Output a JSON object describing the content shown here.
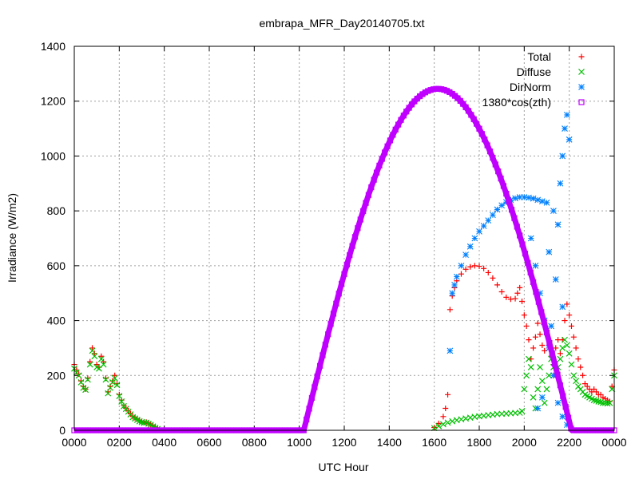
{
  "chart_data": {
    "type": "scatter",
    "title": "embrapa_MFR_Day20140705.txt",
    "xlabel": "UTC Hour",
    "ylabel": "Irradiance (W/m2)",
    "xlim": [
      0,
      24
    ],
    "ylim": [
      0,
      1400
    ],
    "x_ticks": [
      0,
      2,
      4,
      6,
      8,
      10,
      12,
      14,
      16,
      18,
      20,
      22,
      24
    ],
    "x_tick_labels": [
      "0000",
      "0200",
      "0400",
      "0600",
      "0800",
      "1000",
      "1200",
      "1400",
      "1600",
      "1800",
      "2000",
      "2200",
      "0000"
    ],
    "y_ticks": [
      0,
      200,
      400,
      600,
      800,
      1000,
      1200,
      1400
    ],
    "grid": true,
    "legend_position": "top-right",
    "series": [
      {
        "name": "Total",
        "marker": "+",
        "color": "#ff0000",
        "points": [
          [
            0.0,
            240
          ],
          [
            0.1,
            220
          ],
          [
            0.2,
            205
          ],
          [
            0.3,
            180
          ],
          [
            0.4,
            160
          ],
          [
            0.5,
            150
          ],
          [
            0.6,
            190
          ],
          [
            0.7,
            250
          ],
          [
            0.8,
            300
          ],
          [
            0.9,
            280
          ],
          [
            1.0,
            240
          ],
          [
            1.1,
            230
          ],
          [
            1.2,
            270
          ],
          [
            1.3,
            250
          ],
          [
            1.4,
            190
          ],
          [
            1.5,
            140
          ],
          [
            1.6,
            160
          ],
          [
            1.7,
            180
          ],
          [
            1.8,
            200
          ],
          [
            1.9,
            170
          ],
          [
            2.0,
            130
          ],
          [
            2.1,
            110
          ],
          [
            2.2,
            90
          ],
          [
            2.3,
            80
          ],
          [
            2.4,
            70
          ],
          [
            2.5,
            60
          ],
          [
            2.6,
            50
          ],
          [
            2.7,
            45
          ],
          [
            2.8,
            40
          ],
          [
            2.9,
            35
          ],
          [
            3.0,
            30
          ],
          [
            3.1,
            28
          ],
          [
            3.2,
            30
          ],
          [
            3.3,
            25
          ],
          [
            3.4,
            20
          ],
          [
            3.5,
            15
          ],
          [
            3.6,
            10
          ],
          [
            3.7,
            5
          ],
          [
            16.0,
            10
          ],
          [
            16.2,
            25
          ],
          [
            16.4,
            50
          ],
          [
            16.5,
            80
          ],
          [
            16.6,
            130
          ],
          [
            16.7,
            440
          ],
          [
            16.8,
            490
          ],
          [
            16.9,
            520
          ],
          [
            17.0,
            545
          ],
          [
            17.2,
            570
          ],
          [
            17.4,
            587
          ],
          [
            17.6,
            596
          ],
          [
            17.8,
            600
          ],
          [
            18.0,
            598
          ],
          [
            18.2,
            590
          ],
          [
            18.4,
            575
          ],
          [
            18.6,
            555
          ],
          [
            18.8,
            530
          ],
          [
            19.0,
            505
          ],
          [
            19.2,
            485
          ],
          [
            19.4,
            478
          ],
          [
            19.6,
            480
          ],
          [
            19.7,
            500
          ],
          [
            19.8,
            520
          ],
          [
            19.9,
            470
          ],
          [
            20.0,
            420
          ],
          [
            20.1,
            380
          ],
          [
            20.2,
            330
          ],
          [
            20.3,
            260
          ],
          [
            20.4,
            300
          ],
          [
            20.5,
            340
          ],
          [
            20.6,
            390
          ],
          [
            20.7,
            350
          ],
          [
            20.8,
            310
          ],
          [
            20.9,
            290
          ],
          [
            21.0,
            360
          ],
          [
            21.1,
            300
          ],
          [
            21.2,
            270
          ],
          [
            21.3,
            240
          ],
          [
            21.4,
            300
          ],
          [
            21.5,
            330
          ],
          [
            21.6,
            280
          ],
          [
            21.7,
            330
          ],
          [
            21.8,
            400
          ],
          [
            21.9,
            460
          ],
          [
            22.0,
            420
          ],
          [
            22.1,
            380
          ],
          [
            22.2,
            340
          ],
          [
            22.3,
            300
          ],
          [
            22.4,
            260
          ],
          [
            22.5,
            230
          ],
          [
            22.6,
            200
          ],
          [
            22.7,
            170
          ],
          [
            22.8,
            160
          ],
          [
            22.9,
            150
          ],
          [
            23.0,
            140
          ],
          [
            23.1,
            150
          ],
          [
            23.2,
            140
          ],
          [
            23.3,
            130
          ],
          [
            23.4,
            130
          ],
          [
            23.5,
            120
          ],
          [
            23.6,
            115
          ],
          [
            23.7,
            110
          ],
          [
            23.8,
            105
          ],
          [
            23.9,
            160
          ],
          [
            24.0,
            220
          ]
        ]
      },
      {
        "name": "Diffuse",
        "marker": "x",
        "color": "#00c000",
        "points": [
          [
            0.0,
            225
          ],
          [
            0.1,
            210
          ],
          [
            0.2,
            200
          ],
          [
            0.3,
            175
          ],
          [
            0.4,
            155
          ],
          [
            0.5,
            148
          ],
          [
            0.6,
            185
          ],
          [
            0.7,
            240
          ],
          [
            0.8,
            290
          ],
          [
            0.9,
            270
          ],
          [
            1.0,
            230
          ],
          [
            1.1,
            225
          ],
          [
            1.2,
            260
          ],
          [
            1.3,
            240
          ],
          [
            1.4,
            185
          ],
          [
            1.5,
            135
          ],
          [
            1.6,
            155
          ],
          [
            1.7,
            175
          ],
          [
            1.8,
            190
          ],
          [
            1.9,
            165
          ],
          [
            2.0,
            125
          ],
          [
            2.1,
            105
          ],
          [
            2.2,
            88
          ],
          [
            2.3,
            78
          ],
          [
            2.4,
            68
          ],
          [
            2.5,
            58
          ],
          [
            2.6,
            48
          ],
          [
            2.7,
            43
          ],
          [
            2.8,
            38
          ],
          [
            2.9,
            33
          ],
          [
            3.0,
            30
          ],
          [
            3.1,
            27
          ],
          [
            3.2,
            28
          ],
          [
            3.3,
            24
          ],
          [
            3.4,
            20
          ],
          [
            3.5,
            14
          ],
          [
            3.6,
            9
          ],
          [
            3.7,
            5
          ],
          [
            16.0,
            8
          ],
          [
            16.2,
            15
          ],
          [
            16.4,
            22
          ],
          [
            16.6,
            28
          ],
          [
            16.8,
            33
          ],
          [
            17.0,
            37
          ],
          [
            17.2,
            40
          ],
          [
            17.4,
            43
          ],
          [
            17.6,
            46
          ],
          [
            17.8,
            49
          ],
          [
            18.0,
            51
          ],
          [
            18.2,
            53
          ],
          [
            18.4,
            55
          ],
          [
            18.6,
            57
          ],
          [
            18.8,
            59
          ],
          [
            19.0,
            60
          ],
          [
            19.2,
            61
          ],
          [
            19.4,
            62
          ],
          [
            19.6,
            63
          ],
          [
            19.8,
            64
          ],
          [
            19.9,
            70
          ],
          [
            20.0,
            150
          ],
          [
            20.1,
            200
          ],
          [
            20.2,
            260
          ],
          [
            20.3,
            230
          ],
          [
            20.4,
            120
          ],
          [
            20.5,
            80
          ],
          [
            20.6,
            150
          ],
          [
            20.7,
            230
          ],
          [
            20.8,
            180
          ],
          [
            20.9,
            100
          ],
          [
            21.0,
            150
          ],
          [
            21.1,
            200
          ],
          [
            21.2,
            260
          ],
          [
            21.3,
            230
          ],
          [
            21.4,
            200
          ],
          [
            21.5,
            230
          ],
          [
            21.6,
            260
          ],
          [
            21.7,
            300
          ],
          [
            21.8,
            330
          ],
          [
            21.9,
            310
          ],
          [
            22.0,
            280
          ],
          [
            22.1,
            240
          ],
          [
            22.2,
            200
          ],
          [
            22.3,
            180
          ],
          [
            22.4,
            160
          ],
          [
            22.5,
            150
          ],
          [
            22.6,
            140
          ],
          [
            22.7,
            130
          ],
          [
            22.8,
            125
          ],
          [
            22.9,
            120
          ],
          [
            23.0,
            115
          ],
          [
            23.1,
            110
          ],
          [
            23.2,
            108
          ],
          [
            23.3,
            105
          ],
          [
            23.4,
            103
          ],
          [
            23.5,
            100
          ],
          [
            23.6,
            100
          ],
          [
            23.7,
            98
          ],
          [
            23.8,
            100
          ],
          [
            23.9,
            150
          ],
          [
            24.0,
            200
          ]
        ]
      },
      {
        "name": "DirNorm",
        "marker": "*",
        "color": "#0080ff",
        "points": [
          [
            16.7,
            290
          ],
          [
            16.8,
            500
          ],
          [
            16.9,
            530
          ],
          [
            17.0,
            560
          ],
          [
            17.2,
            600
          ],
          [
            17.4,
            640
          ],
          [
            17.6,
            670
          ],
          [
            17.8,
            700
          ],
          [
            18.0,
            725
          ],
          [
            18.2,
            745
          ],
          [
            18.4,
            765
          ],
          [
            18.6,
            785
          ],
          [
            18.8,
            805
          ],
          [
            19.0,
            820
          ],
          [
            19.2,
            832
          ],
          [
            19.4,
            840
          ],
          [
            19.6,
            846
          ],
          [
            19.8,
            850
          ],
          [
            20.0,
            850
          ],
          [
            20.2,
            848
          ],
          [
            20.4,
            845
          ],
          [
            20.6,
            840
          ],
          [
            20.8,
            835
          ],
          [
            21.0,
            830
          ],
          [
            20.3,
            700
          ],
          [
            20.5,
            600
          ],
          [
            20.7,
            500
          ],
          [
            20.9,
            400
          ],
          [
            21.1,
            300
          ],
          [
            21.3,
            200
          ],
          [
            21.5,
            100
          ],
          [
            21.7,
            50
          ],
          [
            21.9,
            20
          ],
          [
            20.6,
            80
          ],
          [
            20.8,
            120
          ],
          [
            21.2,
            380
          ],
          [
            21.4,
            550
          ],
          [
            21.6,
            900
          ],
          [
            21.7,
            1000
          ],
          [
            21.8,
            1100
          ],
          [
            21.9,
            1150
          ],
          [
            22.0,
            1060
          ],
          [
            21.5,
            750
          ],
          [
            21.3,
            800
          ],
          [
            21.1,
            650
          ],
          [
            21.7,
            450
          ]
        ]
      },
      {
        "name": "1380*cos(zth)",
        "marker": "square",
        "color": "#c000ff",
        "curve": {
          "baseline": 0,
          "rise_hour": 10.2,
          "peak_hour": 16.15,
          "peak_value": 1245,
          "set_hour": 22.1
        }
      }
    ]
  }
}
